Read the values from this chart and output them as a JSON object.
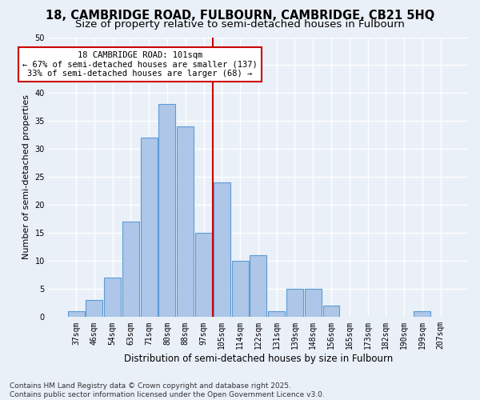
{
  "title": "18, CAMBRIDGE ROAD, FULBOURN, CAMBRIDGE, CB21 5HQ",
  "subtitle": "Size of property relative to semi-detached houses in Fulbourn",
  "xlabel": "Distribution of semi-detached houses by size in Fulbourn",
  "ylabel": "Number of semi-detached properties",
  "categories": [
    "37sqm",
    "46sqm",
    "54sqm",
    "63sqm",
    "71sqm",
    "80sqm",
    "88sqm",
    "97sqm",
    "105sqm",
    "114sqm",
    "122sqm",
    "131sqm",
    "139sqm",
    "148sqm",
    "156sqm",
    "165sqm",
    "173sqm",
    "182sqm",
    "190sqm",
    "199sqm",
    "207sqm"
  ],
  "values": [
    1,
    3,
    7,
    17,
    32,
    38,
    34,
    15,
    24,
    10,
    11,
    1,
    5,
    5,
    2,
    0,
    0,
    0,
    0,
    1,
    0
  ],
  "bar_color": "#aec6e8",
  "bar_edge_color": "#5b9bd5",
  "background_color": "#eaf0f8",
  "grid_color": "#ffffff",
  "vline_color": "#cc0000",
  "annotation_box_text": "18 CAMBRIDGE ROAD: 101sqm\n← 67% of semi-detached houses are smaller (137)\n33% of semi-detached houses are larger (68) →",
  "annotation_box_color": "#cc0000",
  "annotation_box_fill": "#ffffff",
  "ylim": [
    0,
    50
  ],
  "yticks": [
    0,
    5,
    10,
    15,
    20,
    25,
    30,
    35,
    40,
    45,
    50
  ],
  "footer_text": "Contains HM Land Registry data © Crown copyright and database right 2025.\nContains public sector information licensed under the Open Government Licence v3.0.",
  "title_fontsize": 10.5,
  "subtitle_fontsize": 9.5,
  "xlabel_fontsize": 8.5,
  "ylabel_fontsize": 8,
  "tick_fontsize": 7,
  "annotation_fontsize": 7.5,
  "footer_fontsize": 6.5,
  "vline_index": 7.5
}
